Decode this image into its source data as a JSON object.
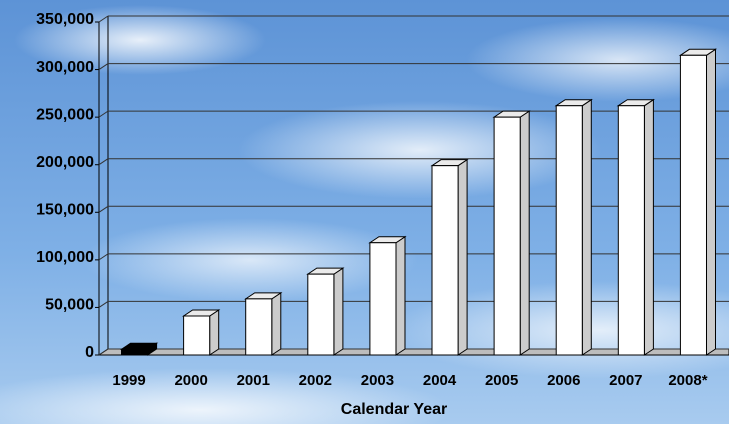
{
  "chart_data": {
    "type": "bar3d",
    "x_label": "Calendar Year",
    "categories": [
      "1999",
      "2000",
      "2001",
      "2002",
      "2003",
      "2004",
      "2005",
      "2006",
      "2007",
      "2008*"
    ],
    "values": [
      6000,
      41000,
      59000,
      85000,
      118000,
      199000,
      250000,
      262000,
      262000,
      315000
    ],
    "colors": [
      "#000000",
      "#ffffff",
      "#ffffff",
      "#ffffff",
      "#ffffff",
      "#ffffff",
      "#ffffff",
      "#ffffff",
      "#ffffff",
      "#ffffff"
    ],
    "ylim": [
      0,
      350000
    ],
    "yticks": [
      0,
      {
        "value": 50000,
        "label": "50,000"
      },
      {
        "value": 100000,
        "label": "100,000"
      },
      {
        "value": 150000,
        "label": "150,000"
      },
      {
        "value": 200000,
        "label": "200,000"
      },
      {
        "value": 250000,
        "label": "250,000"
      },
      {
        "value": 300000,
        "label": "300,000"
      },
      {
        "value": 350000,
        "label": "350,000"
      }
    ],
    "grid": true
  }
}
